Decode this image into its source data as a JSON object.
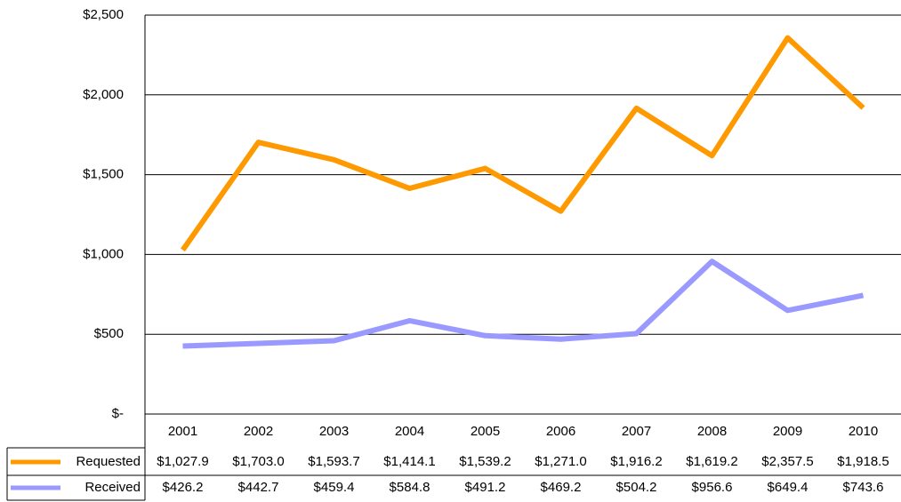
{
  "chart_data": {
    "type": "line",
    "categories": [
      "2001",
      "2002",
      "2003",
      "2004",
      "2005",
      "2006",
      "2007",
      "2008",
      "2009",
      "2010"
    ],
    "series": [
      {
        "name": "Requested",
        "color": "#ff9900",
        "values": [
          1027.9,
          1703.0,
          1593.7,
          1414.1,
          1539.2,
          1271.0,
          1916.2,
          1619.2,
          2357.5,
          1918.5
        ],
        "value_labels": [
          "$1,027.9",
          "$1,703.0",
          "$1,593.7",
          "$1,414.1",
          "$1,539.2",
          "$1,271.0",
          "$1,916.2",
          "$1,619.2",
          "$2,357.5",
          "$1,918.5"
        ]
      },
      {
        "name": "Received",
        "color": "#9999ff",
        "values": [
          426.2,
          442.7,
          459.4,
          584.8,
          491.2,
          469.2,
          504.2,
          956.6,
          649.4,
          743.6
        ],
        "value_labels": [
          "$426.2",
          "$442.7",
          "$459.4",
          "$584.8",
          "$491.2",
          "$469.2",
          "$504.2",
          "$956.6",
          "$649.4",
          "$743.6"
        ]
      }
    ],
    "ylim": [
      0,
      2500
    ],
    "yticks": [
      {
        "value": 0,
        "label": "$-"
      },
      {
        "value": 500,
        "label": "$500"
      },
      {
        "value": 1000,
        "label": "$1,000"
      },
      {
        "value": 1500,
        "label": "$1,500"
      },
      {
        "value": 2000,
        "label": "$2,000"
      },
      {
        "value": 2500,
        "label": "$2,500"
      }
    ],
    "grid": true
  }
}
